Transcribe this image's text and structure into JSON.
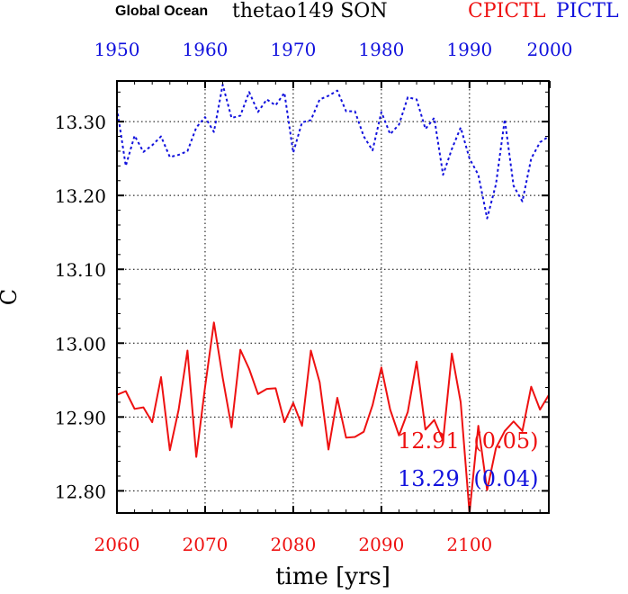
{
  "chart_data": {
    "type": "line",
    "title": {
      "region": "Global Ocean",
      "variable": "thetao149 SON",
      "series_a_label": "CPICTL",
      "series_b_label": "PICTL"
    },
    "ylabel": "C",
    "xlabel": "time [yrs]",
    "ylim": [
      12.77,
      13.355
    ],
    "y_ticks": [
      12.8,
      12.9,
      13.0,
      13.1,
      13.2,
      13.3
    ],
    "y_tick_labels": [
      "12.80",
      "12.90",
      "13.00",
      "13.10",
      "13.20",
      "13.30"
    ],
    "x_bottom": {
      "range": [
        2060,
        2109
      ],
      "ticks": [
        2060,
        2070,
        2080,
        2090,
        2100
      ],
      "tick_labels": [
        "2060",
        "2070",
        "2080",
        "2090",
        "2100"
      ]
    },
    "x_top": {
      "range": [
        1950,
        1999
      ],
      "ticks": [
        1950,
        1960,
        1970,
        1980,
        1990,
        2000
      ],
      "tick_labels": [
        "1950",
        "1960",
        "1970",
        "1980",
        "1990",
        "2000"
      ]
    },
    "grid": true,
    "series": [
      {
        "name": "CPICTL",
        "color": "#ee1111",
        "style": "solid",
        "axis": "bottom",
        "x": [
          2060,
          2061,
          2062,
          2063,
          2064,
          2065,
          2066,
          2067,
          2068,
          2069,
          2070,
          2071,
          2072,
          2073,
          2074,
          2075,
          2076,
          2077,
          2078,
          2079,
          2080,
          2081,
          2082,
          2083,
          2084,
          2085,
          2086,
          2087,
          2088,
          2089,
          2090,
          2091,
          2092,
          2093,
          2094,
          2095,
          2096,
          2097,
          2098,
          2099,
          2100,
          2101,
          2102,
          2103,
          2104,
          2105,
          2106,
          2107,
          2108,
          2109
        ],
        "values": [
          12.93,
          12.935,
          12.911,
          12.913,
          12.893,
          12.954,
          12.855,
          12.91,
          12.99,
          12.846,
          12.941,
          13.028,
          12.953,
          12.886,
          12.991,
          12.965,
          12.931,
          12.938,
          12.939,
          12.893,
          12.919,
          12.888,
          12.99,
          12.947,
          12.856,
          12.926,
          12.872,
          12.873,
          12.88,
          12.916,
          12.967,
          12.91,
          12.875,
          12.907,
          12.975,
          12.883,
          12.896,
          12.868,
          12.986,
          12.92,
          12.77,
          12.888,
          12.801,
          12.858,
          12.881,
          12.894,
          12.881,
          12.941,
          12.91,
          12.93
        ],
        "annotation": {
          "mean": "12.91",
          "std": "(0.05)"
        }
      },
      {
        "name": "PICTL",
        "color": "#1111dd",
        "style": "dotted",
        "axis": "top",
        "x": [
          1950,
          1951,
          1952,
          1953,
          1954,
          1955,
          1956,
          1957,
          1958,
          1959,
          1960,
          1961,
          1962,
          1963,
          1964,
          1965,
          1966,
          1967,
          1968,
          1969,
          1970,
          1971,
          1972,
          1973,
          1974,
          1975,
          1976,
          1977,
          1978,
          1979,
          1980,
          1981,
          1982,
          1983,
          1984,
          1985,
          1986,
          1987,
          1988,
          1989,
          1990,
          1991,
          1992,
          1993,
          1994,
          1995,
          1996,
          1997,
          1998,
          1999
        ],
        "values": [
          13.318,
          13.24,
          13.281,
          13.259,
          13.268,
          13.28,
          13.252,
          13.255,
          13.26,
          13.292,
          13.306,
          13.286,
          13.35,
          13.305,
          13.308,
          13.34,
          13.313,
          13.33,
          13.322,
          13.339,
          13.258,
          13.299,
          13.302,
          13.33,
          13.335,
          13.342,
          13.314,
          13.314,
          13.28,
          13.261,
          13.313,
          13.283,
          13.296,
          13.333,
          13.33,
          13.29,
          13.305,
          13.228,
          13.263,
          13.292,
          13.25,
          13.228,
          13.169,
          13.215,
          13.303,
          13.213,
          13.192,
          13.25,
          13.272,
          13.28
        ],
        "annotation": {
          "mean": "13.29",
          "std": "(0.04)"
        }
      }
    ]
  }
}
